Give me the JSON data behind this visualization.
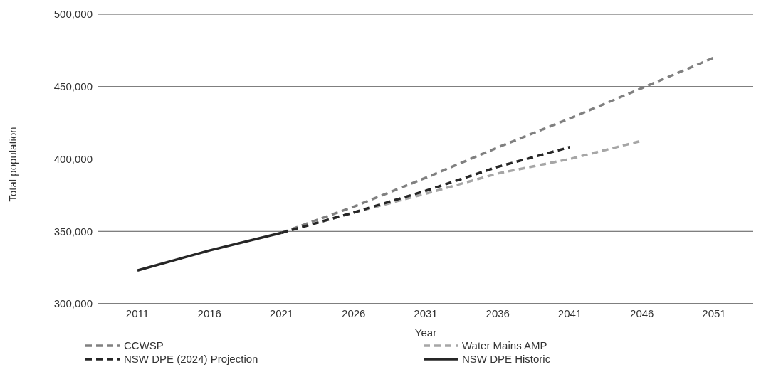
{
  "chart_data": {
    "type": "line",
    "xlabel": "Year",
    "ylabel": "Total population",
    "categories": [
      "2011",
      "2016",
      "2021",
      "2026",
      "2031",
      "2036",
      "2041",
      "2046",
      "2051"
    ],
    "series": [
      {
        "name": "CCWSP",
        "color": "#808080",
        "line_style": "dashed",
        "values": [
          null,
          null,
          349000,
          367000,
          387000,
          408000,
          428000,
          449000,
          470000
        ]
      },
      {
        "name": "Water Mains AMP",
        "color": "#a6a6a6",
        "line_style": "dashed",
        "values": [
          null,
          null,
          349000,
          363000,
          376000,
          390000,
          400000,
          412600,
          null
        ]
      },
      {
        "name": "NSW DPE (2024) Projection",
        "color": "#262626",
        "line_style": "dashed",
        "values": [
          null,
          null,
          349000,
          363000,
          378000,
          394600,
          408200,
          null,
          null
        ]
      },
      {
        "name": "NSW DPE Historic",
        "color": "#262626",
        "line_style": "solid",
        "values": [
          323000,
          336800,
          349000,
          null,
          null,
          null,
          null,
          null,
          null
        ]
      }
    ],
    "ylim": [
      300000,
      500000
    ],
    "yticks": [
      {
        "value": 300000,
        "label": "300,000"
      },
      {
        "value": 350000,
        "label": "350,000"
      },
      {
        "value": 400000,
        "label": "400,000"
      },
      {
        "value": 450000,
        "label": "450,000"
      },
      {
        "value": 500000,
        "label": "500,000"
      }
    ],
    "grid": "y",
    "legend": "bottom",
    "marker": "none"
  }
}
